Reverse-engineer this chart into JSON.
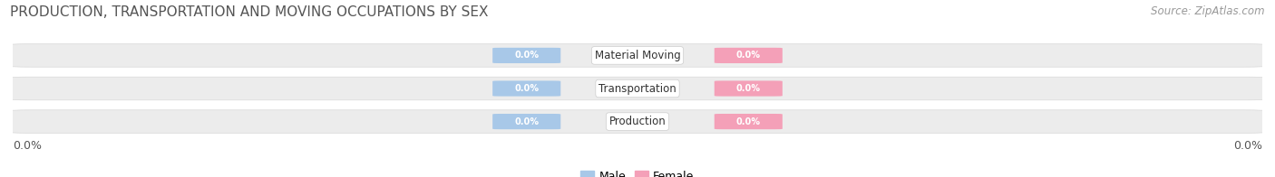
{
  "title": "PRODUCTION, TRANSPORTATION AND MOVING OCCUPATIONS BY SEX",
  "source": "Source: ZipAtlas.com",
  "categories": [
    "Production",
    "Transportation",
    "Material Moving"
  ],
  "male_values": [
    0.0,
    0.0,
    0.0
  ],
  "female_values": [
    0.0,
    0.0,
    0.0
  ],
  "male_color": "#a8c8e8",
  "female_color": "#f4a0b8",
  "bar_bg_color": "#e8e8e8",
  "bar_bg_color2": "#f5f5f5",
  "x_left_label": "0.0%",
  "x_right_label": "0.0%",
  "title_fontsize": 11,
  "source_fontsize": 8.5,
  "bar_height": 0.62,
  "figsize": [
    14.06,
    1.96
  ],
  "dpi": 100,
  "value_label": "0.0%",
  "male_label": "Male",
  "female_label": "Female"
}
